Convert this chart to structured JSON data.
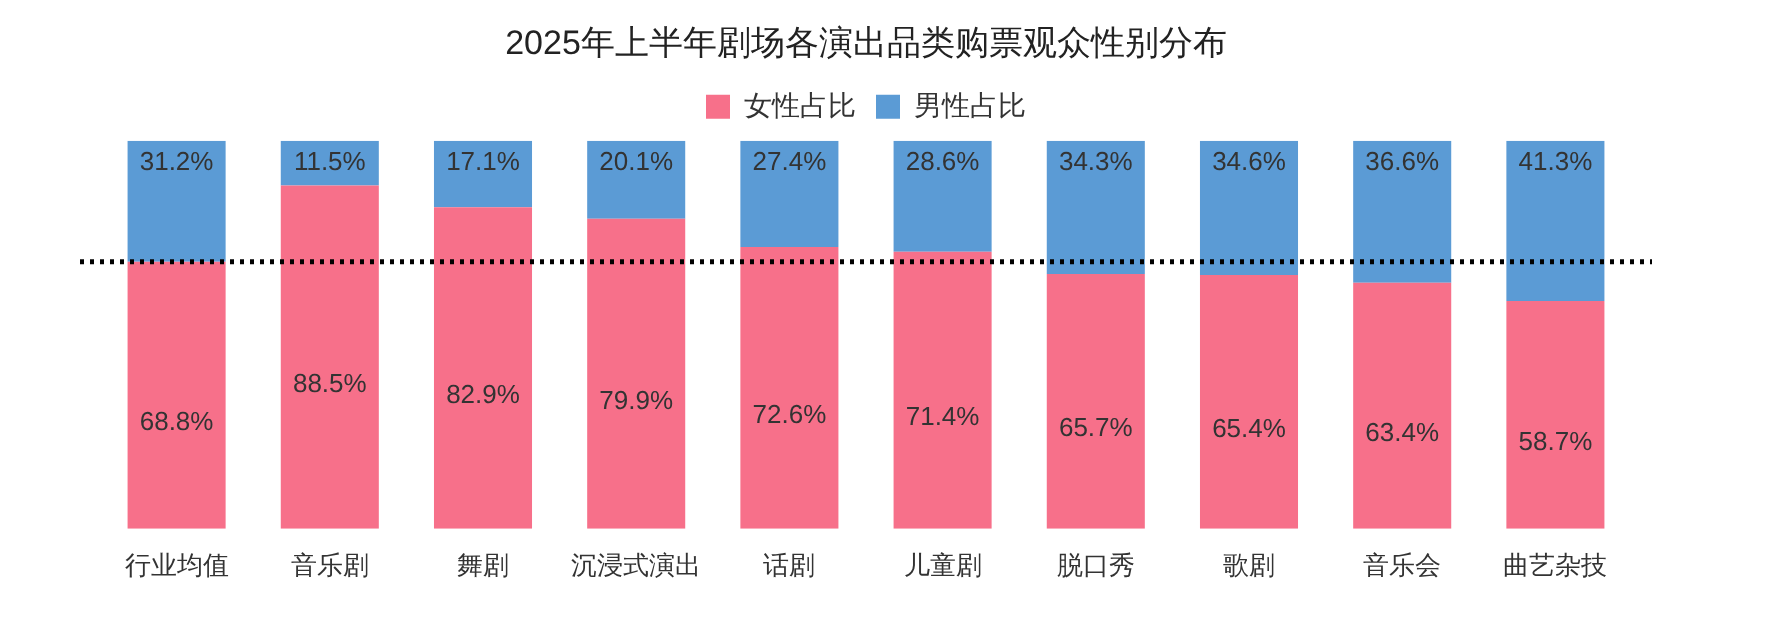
{
  "chart_data": {
    "type": "bar",
    "stacked": true,
    "title": "2025年上半年剧场各演出品类购票观众性别分布",
    "categories": [
      "行业均值",
      "音乐剧",
      "舞剧",
      "沉浸式演出",
      "话剧",
      "儿童剧",
      "脱口秀",
      "歌剧",
      "音乐会",
      "曲艺杂技"
    ],
    "series": [
      {
        "name": "女性占比",
        "color": "#f7708a",
        "values": [
          68.8,
          88.5,
          82.9,
          79.9,
          72.6,
          71.4,
          65.7,
          65.4,
          63.4,
          58.7
        ],
        "value_labels": [
          "68.8%",
          "88.5%",
          "82.9%",
          "79.9%",
          "72.6%",
          "71.4%",
          "65.7%",
          "65.4%",
          "63.4%",
          "58.7%"
        ]
      },
      {
        "name": "男性占比",
        "color": "#5b9bd5",
        "values": [
          31.2,
          11.5,
          17.1,
          20.1,
          27.4,
          28.6,
          34.3,
          34.6,
          36.6,
          41.3
        ],
        "value_labels": [
          "31.2%",
          "11.5%",
          "17.1%",
          "20.1%",
          "27.4%",
          "28.6%",
          "34.3%",
          "34.6%",
          "36.6%",
          "41.3%"
        ]
      }
    ],
    "ylim": [
      0,
      100
    ],
    "tick_labels": "x",
    "grid": false,
    "legend": "top",
    "ref_lines": [
      {
        "axis": "y",
        "value": 68.8,
        "color": "#000000",
        "line_style": "dotted"
      }
    ]
  }
}
